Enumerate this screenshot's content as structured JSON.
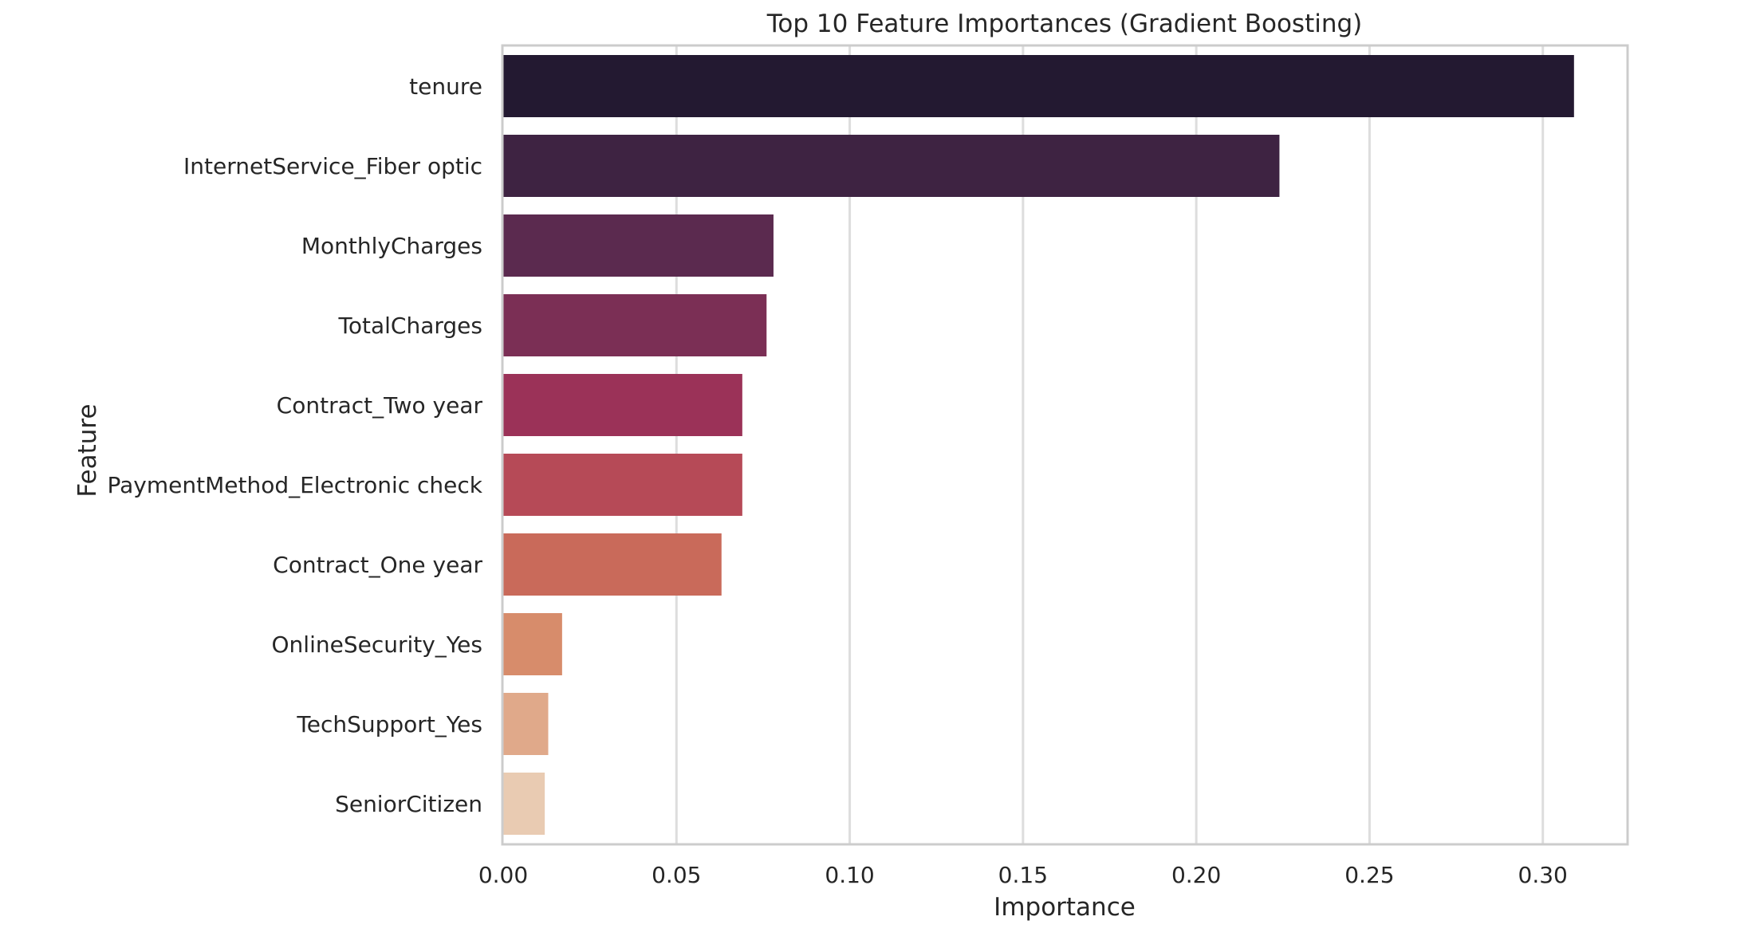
{
  "chart_data": {
    "type": "bar",
    "orientation": "horizontal",
    "title": "Top 10 Feature Importances (Gradient Boosting)",
    "xlabel": "Importance",
    "ylabel": "Feature",
    "categories": [
      "tenure",
      "InternetService_Fiber optic",
      "MonthlyCharges",
      "TotalCharges",
      "Contract_Two year",
      "PaymentMethod_Electronic check",
      "Contract_One year",
      "OnlineSecurity_Yes",
      "TechSupport_Yes",
      "SeniorCitizen"
    ],
    "values": [
      0.309,
      0.224,
      0.078,
      0.076,
      0.069,
      0.069,
      0.063,
      0.017,
      0.013,
      0.012
    ],
    "colors": [
      "#231931",
      "#3e2342",
      "#5b2a4f",
      "#7b2f55",
      "#9b3258",
      "#b64a57",
      "#c96a5a",
      "#d78c6b",
      "#e0a98a",
      "#e9cbb2"
    ],
    "xlim": [
      0,
      0.324
    ],
    "xticks": [
      0,
      0.05,
      0.1,
      0.15,
      0.2,
      0.25,
      0.3
    ],
    "xtick_labels": [
      "0.00",
      "0.05",
      "0.10",
      "0.15",
      "0.20",
      "0.25",
      "0.30"
    ],
    "grid": "vertical",
    "legend": "none"
  }
}
